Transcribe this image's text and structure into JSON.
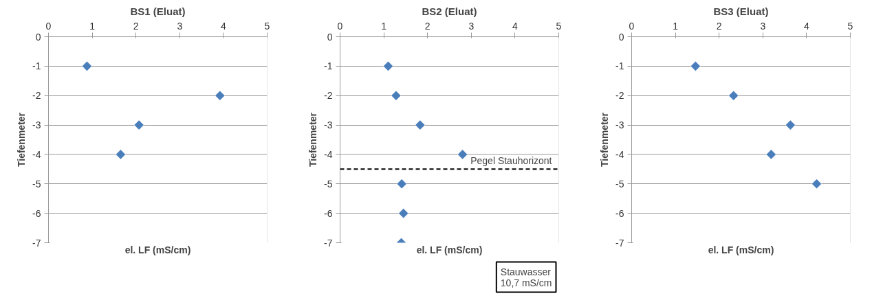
{
  "chart_data": [
    {
      "type": "scatter",
      "title": "BS1 (Eluat)",
      "xlabel": "el. LF (mS/cm)",
      "ylabel": "Tiefenmeter",
      "marker": "diamond",
      "grid": "y",
      "xlim": [
        0,
        5
      ],
      "xticks": [
        0,
        1,
        2,
        3,
        4,
        5
      ],
      "ylim": [
        -7,
        0
      ],
      "yticks": [
        -7,
        -6,
        -5,
        -4,
        -3,
        -2,
        -1,
        0
      ],
      "series": [
        {
          "color": "#4a7ebb",
          "x": [
            0.88,
            3.92,
            2.07,
            1.65
          ],
          "values": [
            -1,
            -2,
            -3,
            -4
          ]
        }
      ]
    },
    {
      "type": "scatter",
      "title": "BS2 (Eluat)",
      "xlabel": "el. LF (mS/cm)",
      "ylabel": "Tiefenmeter",
      "marker": "diamond",
      "grid": "y",
      "xlim": [
        0,
        5
      ],
      "xticks": [
        0,
        1,
        2,
        3,
        4,
        5
      ],
      "ylim": [
        -7,
        0
      ],
      "yticks": [
        -7,
        -6,
        -5,
        -4,
        -3,
        -2,
        -1,
        0
      ],
      "series": [
        {
          "color": "#4a7ebb",
          "x": [
            1.1,
            1.28,
            1.83,
            2.8,
            1.41,
            1.45,
            1.4
          ],
          "values": [
            -1,
            -2,
            -3,
            -4,
            -5,
            -6,
            -7
          ]
        }
      ],
      "ref_lines": [
        {
          "axis": "y",
          "value": -4.5,
          "label": "Pegel Stauhorizont",
          "color": "#000000",
          "line_style": "dashed"
        }
      ],
      "annotations": [
        "Stauwasser\n10,7 mS/cm"
      ]
    },
    {
      "type": "scatter",
      "title": "BS3 (Eluat)",
      "xlabel": "el. LF (mS/cm)",
      "ylabel": "Tiefenmeter",
      "marker": "diamond",
      "grid": "y",
      "xlim": [
        0,
        5
      ],
      "xticks": [
        0,
        1,
        2,
        3,
        4,
        5
      ],
      "ylim": [
        -7,
        0
      ],
      "yticks": [
        -7,
        -6,
        -5,
        -4,
        -3,
        -2,
        -1,
        0
      ],
      "series": [
        {
          "color": "#4a7ebb",
          "x": [
            1.46,
            2.33,
            3.63,
            3.19,
            4.23
          ],
          "values": [
            -1,
            -2,
            -3,
            -4,
            -5
          ]
        }
      ]
    }
  ]
}
